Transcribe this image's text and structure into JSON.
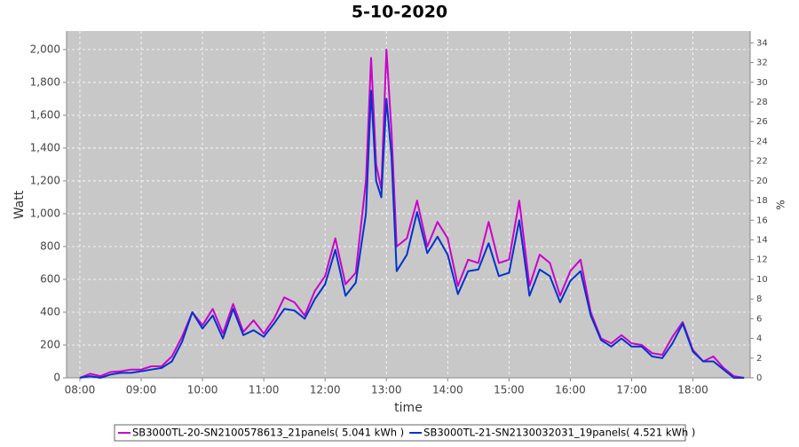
{
  "chart_data": {
    "type": "line",
    "title": "5-10-2020",
    "x_label": "time",
    "y_label": "Watt",
    "y2_label": "%",
    "x": [
      "08:00",
      "08:10",
      "08:20",
      "08:30",
      "08:40",
      "08:50",
      "09:00",
      "09:10",
      "09:20",
      "09:30",
      "09:40",
      "09:50",
      "10:00",
      "10:10",
      "10:20",
      "10:30",
      "10:40",
      "10:50",
      "11:00",
      "11:10",
      "11:20",
      "11:30",
      "11:40",
      "11:50",
      "12:00",
      "12:10",
      "12:20",
      "12:30",
      "12:40",
      "12:45",
      "12:50",
      "12:55",
      "13:00",
      "13:05",
      "13:10",
      "13:20",
      "13:30",
      "13:40",
      "13:50",
      "14:00",
      "14:10",
      "14:20",
      "14:30",
      "14:40",
      "14:50",
      "15:00",
      "15:10",
      "15:20",
      "15:30",
      "15:40",
      "15:50",
      "16:00",
      "16:10",
      "16:20",
      "16:30",
      "16:40",
      "16:50",
      "17:00",
      "17:10",
      "17:20",
      "17:30",
      "17:40",
      "17:50",
      "18:00",
      "18:10",
      "18:20",
      "18:30",
      "18:40",
      "18:50"
    ],
    "series": [
      {
        "name": "SB3000TL-20-SN2100578613_21panels( 5.041 kWh )",
        "color": "#cc00cc",
        "values": [
          0,
          25,
          10,
          35,
          40,
          50,
          50,
          70,
          70,
          130,
          250,
          400,
          320,
          420,
          270,
          450,
          280,
          350,
          270,
          360,
          490,
          460,
          380,
          530,
          620,
          850,
          570,
          640,
          1200,
          1950,
          1300,
          1150,
          2000,
          1500,
          800,
          850,
          1080,
          800,
          950,
          850,
          560,
          720,
          700,
          950,
          700,
          720,
          1080,
          560,
          750,
          700,
          500,
          650,
          720,
          400,
          240,
          210,
          260,
          210,
          200,
          150,
          140,
          250,
          340,
          170,
          100,
          130,
          60,
          10,
          0
        ]
      },
      {
        "name": "SB3000TL-21-SN2130032031_19panels( 4.521 kWh )",
        "color": "#0033cc",
        "values": [
          0,
          10,
          0,
          20,
          30,
          30,
          40,
          50,
          60,
          100,
          220,
          400,
          300,
          380,
          240,
          420,
          260,
          290,
          250,
          330,
          420,
          410,
          360,
          480,
          570,
          780,
          500,
          580,
          1000,
          1750,
          1200,
          1100,
          1700,
          1350,
          650,
          750,
          1010,
          760,
          860,
          750,
          510,
          650,
          660,
          820,
          620,
          640,
          960,
          500,
          660,
          620,
          460,
          590,
          650,
          380,
          230,
          190,
          240,
          190,
          190,
          130,
          120,
          210,
          330,
          160,
          100,
          100,
          50,
          0,
          0
        ]
      }
    ],
    "xlim": [
      "07:47",
      "18:56"
    ],
    "xticks": [
      "08:00",
      "09:00",
      "10:00",
      "11:00",
      "12:00",
      "13:00",
      "14:00",
      "15:00",
      "16:00",
      "17:00",
      "18:00"
    ],
    "ylim": [
      0,
      2113
    ],
    "yticks": [
      0,
      200,
      400,
      600,
      800,
      {
        "value": 1000,
        "label": "1,000"
      },
      {
        "value": 1200,
        "label": "1,200"
      },
      {
        "value": 1400,
        "label": "1,400"
      },
      {
        "value": 1600,
        "label": "1,600"
      },
      {
        "value": 1800,
        "label": "1,800"
      },
      {
        "value": 2000,
        "label": "2,000"
      }
    ],
    "y2lim": [
      0,
      35.2
    ],
    "y2ticks": [
      0,
      2,
      4,
      6,
      8,
      10,
      12,
      14,
      16,
      18,
      20,
      22,
      24,
      26,
      28,
      30,
      32,
      34
    ],
    "grid": true,
    "legend": "bottom"
  }
}
